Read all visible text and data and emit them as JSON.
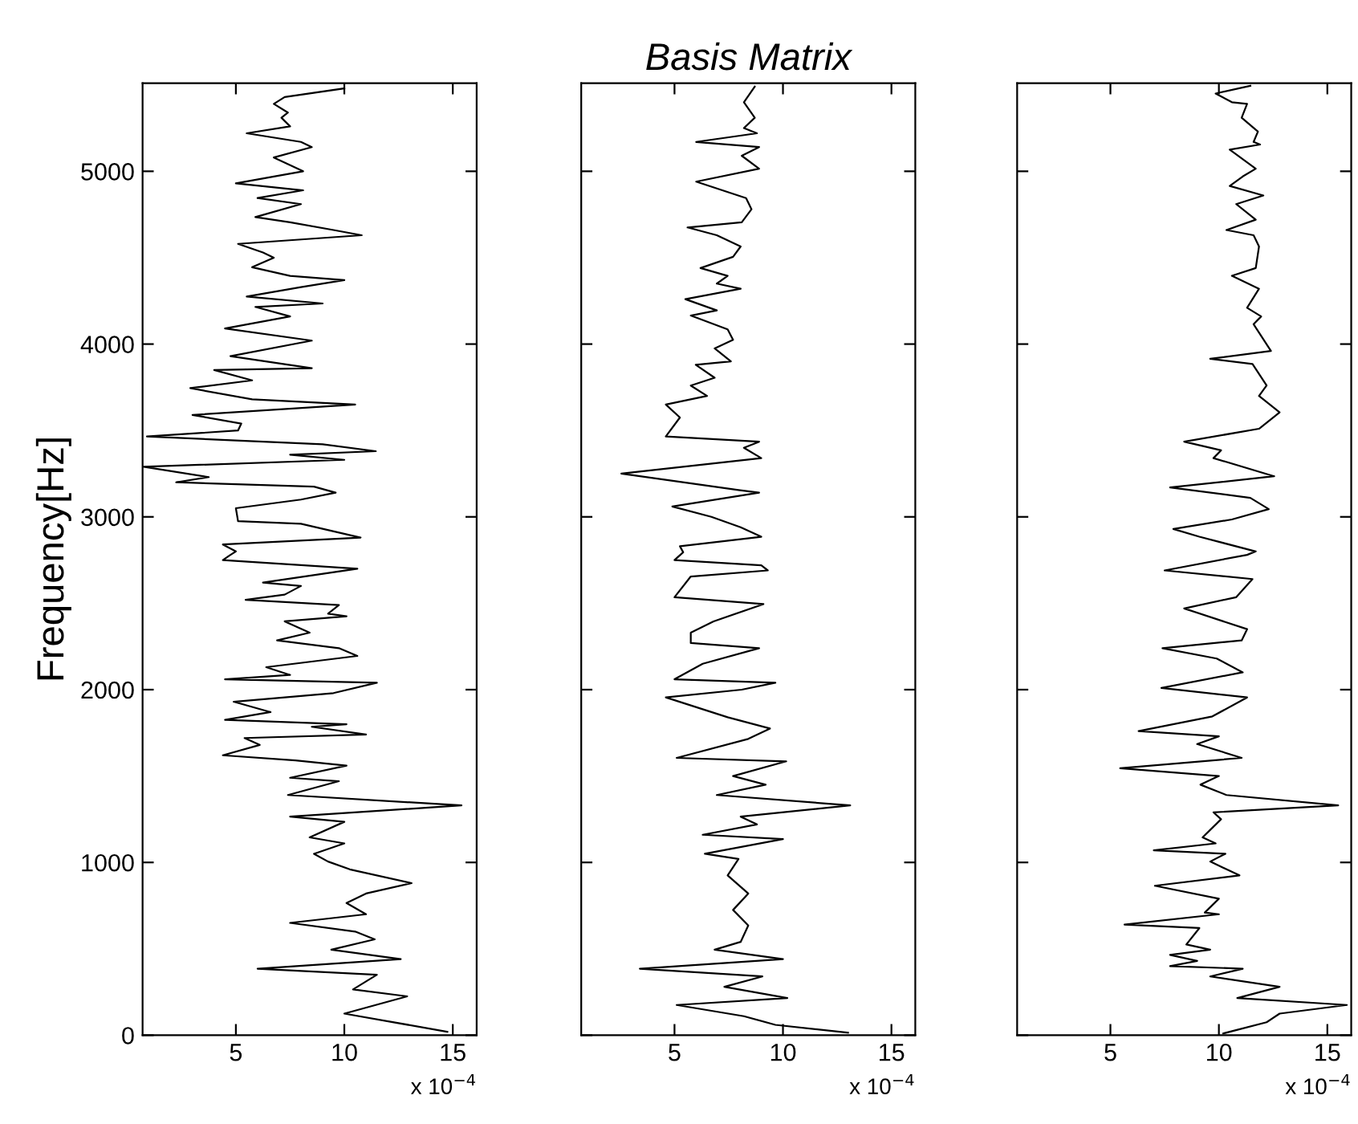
{
  "chart_data": [
    {
      "type": "line",
      "ylabel": "Frequency[Hz]",
      "annotations": [
        "x 10$^{−4}$"
      ],
      "xlim": [
        0.7,
        16.1
      ],
      "xticks": [
        5,
        10,
        15
      ],
      "ylim": [
        0,
        5510
      ],
      "yticks": [
        0,
        1000,
        2000,
        3000,
        4000,
        5000
      ],
      "line_style": "solid",
      "series": [
        {
          "color": "#000000",
          "x": [
            10,
            7.25,
            6.75,
            7.4,
            7.1,
            7.5,
            5.5,
            8,
            8.5,
            6.75,
            8.1,
            6.75,
            5,
            8.1,
            6,
            8,
            5.9,
            7.5,
            9.5,
            10.8,
            5.1,
            6.25,
            6.75,
            5.75,
            7.5,
            10,
            8,
            5.5,
            9,
            5.9,
            7.5,
            4.5,
            8.5,
            4.75,
            8.5,
            4,
            5.75,
            2.9,
            5.75,
            10.5,
            3,
            5.25,
            5.1,
            0.9,
            9,
            11.45,
            7.5,
            10,
            0.75,
            3.75,
            2.25,
            8.6,
            9.6,
            8,
            5,
            5.1,
            8,
            10.75,
            4.4,
            5,
            4.75,
            4.4,
            10.6,
            6.25,
            8,
            7.25,
            5.45,
            9.75,
            9.25,
            10.1,
            7.25,
            8.4,
            6.9,
            9.75,
            10.6,
            6.4,
            7.5,
            4.5,
            11.5,
            9.5,
            4.9,
            6.6,
            4.5,
            10.1,
            8.5,
            11,
            5.4,
            6.1,
            4.4,
            7.75,
            10.1,
            7.5,
            9.75,
            7.4,
            15.4,
            7.5,
            10,
            8.4,
            10,
            8.6,
            9.25,
            10.25,
            13.1,
            11,
            10.1,
            11,
            7.5,
            10.5,
            11.4,
            9.4,
            12.6,
            6,
            11.5,
            10.4,
            12.9,
            10,
            14.75
          ],
          "values": [
            5480,
            5430,
            5390,
            5340,
            5310,
            5260,
            5220,
            5170,
            5140,
            5080,
            5000,
            4970,
            4930,
            4890,
            4845,
            4810,
            4735,
            4705,
            4660,
            4630,
            4580,
            4530,
            4500,
            4445,
            4395,
            4370,
            4330,
            4275,
            4235,
            4215,
            4160,
            4090,
            4020,
            3930,
            3860,
            3850,
            3790,
            3745,
            3680,
            3650,
            3590,
            3540,
            3500,
            3465,
            3420,
            3380,
            3360,
            3330,
            3290,
            3230,
            3200,
            3175,
            3140,
            3100,
            3050,
            2975,
            2960,
            2880,
            2840,
            2800,
            2780,
            2750,
            2700,
            2620,
            2600,
            2550,
            2520,
            2490,
            2440,
            2425,
            2395,
            2330,
            2285,
            2240,
            2195,
            2130,
            2085,
            2060,
            2040,
            1980,
            1930,
            1870,
            1825,
            1800,
            1785,
            1740,
            1720,
            1680,
            1620,
            1590,
            1560,
            1490,
            1470,
            1390,
            1330,
            1265,
            1235,
            1145,
            1110,
            1050,
            1005,
            960,
            880,
            820,
            765,
            700,
            650,
            600,
            555,
            495,
            440,
            385,
            350,
            265,
            225,
            125,
            20
          ]
        }
      ]
    },
    {
      "type": "line",
      "title": "Basis Matrix",
      "annotations": [
        "x 10$^{−4}$"
      ],
      "xlim": [
        0.7,
        16.1
      ],
      "xticks": [
        5,
        10,
        15
      ],
      "ylim": [
        0,
        5510
      ],
      "yticks": [
        {
          "value": 0,
          "label": null
        },
        {
          "value": 1000,
          "label": null
        },
        {
          "value": 2000,
          "label": null
        },
        {
          "value": 3000,
          "label": null
        },
        {
          "value": 4000,
          "label": null
        },
        {
          "value": 5000,
          "label": null
        }
      ],
      "tick_labels": "x",
      "line_style": "solid",
      "series": [
        {
          "color": "#000000",
          "x": [
            8.7,
            8.2,
            8.7,
            8.2,
            8.8,
            6,
            8.9,
            8.1,
            8.9,
            6,
            8.3,
            8.55,
            8.1,
            5.6,
            6.95,
            8.05,
            7.7,
            6.2,
            7.45,
            6.95,
            8.05,
            5.5,
            6.95,
            5.75,
            7.45,
            7.7,
            6.85,
            7.6,
            5.98,
            6.85,
            5.75,
            6.5,
            4.6,
            5.25,
            4.6,
            8.9,
            8.2,
            9,
            2.55,
            7.95,
            8.9,
            4.9,
            6.7,
            8.05,
            9,
            5.25,
            5.4,
            5,
            9,
            9.3,
            5.75,
            5,
            9.1,
            6.8,
            5.75,
            5.75,
            8.9,
            6.3,
            5,
            9.65,
            8.1,
            4.6,
            7.45,
            9.4,
            8.4,
            5.1,
            10.15,
            7.7,
            9.2,
            6.95,
            13.1,
            8.05,
            8.8,
            6.3,
            10,
            6.4,
            7.95,
            7.45,
            8.4,
            7.7,
            8.4,
            8.05,
            6.85,
            10,
            3.4,
            9.05,
            7.3,
            10.2,
            5.1,
            8.2,
            9.65,
            13
          ],
          "values": [
            5490,
            5400,
            5310,
            5250,
            5220,
            5170,
            5140,
            5090,
            5015,
            4940,
            4845,
            4780,
            4705,
            4675,
            4630,
            4565,
            4505,
            4440,
            4395,
            4350,
            4320,
            4260,
            4195,
            4165,
            4085,
            4025,
            3975,
            3900,
            3880,
            3805,
            3760,
            3700,
            3650,
            3575,
            3465,
            3435,
            3400,
            3340,
            3250,
            3155,
            3140,
            3060,
            3000,
            2940,
            2885,
            2830,
            2795,
            2750,
            2720,
            2690,
            2655,
            2535,
            2495,
            2395,
            2330,
            2270,
            2240,
            2150,
            2060,
            2040,
            2000,
            1955,
            1840,
            1775,
            1715,
            1605,
            1585,
            1500,
            1450,
            1390,
            1330,
            1265,
            1220,
            1160,
            1135,
            1050,
            1020,
            925,
            820,
            725,
            635,
            540,
            495,
            440,
            385,
            340,
            280,
            215,
            175,
            110,
            60,
            15
          ]
        }
      ]
    },
    {
      "type": "line",
      "annotations": [
        "x 10$^{−4}$"
      ],
      "xlim": [
        0.7,
        16.1
      ],
      "xticks": [
        5,
        10,
        15
      ],
      "ylim": [
        0,
        5510
      ],
      "yticks": [
        {
          "value": 0,
          "label": null
        },
        {
          "value": 1000,
          "label": null
        },
        {
          "value": 2000,
          "label": null
        },
        {
          "value": 3000,
          "label": null
        },
        {
          "value": 4000,
          "label": null
        },
        {
          "value": 5000,
          "label": null
        }
      ],
      "tick_labels": "x",
      "line_style": "solid",
      "series": [
        {
          "color": "#000000",
          "x": [
            11.45,
            9.85,
            10.6,
            11.3,
            11.05,
            11.8,
            11.6,
            11.9,
            10.5,
            11.7,
            11.1,
            10.5,
            12.05,
            10.8,
            11.7,
            10.35,
            11.6,
            11.85,
            11.7,
            10.6,
            11.85,
            11.3,
            11.95,
            11.6,
            12.4,
            9.6,
            11.55,
            12.2,
            11.85,
            12.8,
            11.85,
            8.4,
            10.1,
            9.75,
            12.55,
            7.75,
            11.45,
            12.3,
            10.6,
            7.9,
            9.1,
            11.7,
            11.3,
            7.5,
            11.55,
            10.8,
            8.4,
            11.3,
            11.05,
            7.4,
            9.9,
            11.1,
            7.35,
            11.3,
            9.7,
            6.3,
            10,
            9,
            11.05,
            5.45,
            10,
            9.15,
            10.35,
            15.5,
            9.75,
            10.1,
            9.25,
            9.85,
            7,
            10.3,
            9.6,
            10.95,
            7.05,
            10,
            9.35,
            10,
            5.65,
            9.1,
            8.5,
            9.6,
            7.75,
            9,
            7.75,
            11.1,
            9.6,
            12.8,
            10.85,
            15.9,
            12.8,
            12.2,
            10.2
          ],
          "values": [
            5495,
            5450,
            5400,
            5390,
            5310,
            5230,
            5170,
            5155,
            5125,
            5015,
            4970,
            4915,
            4860,
            4810,
            4720,
            4660,
            4630,
            4565,
            4440,
            4395,
            4320,
            4210,
            4160,
            4115,
            3960,
            3915,
            3885,
            3760,
            3700,
            3605,
            3510,
            3435,
            3385,
            3340,
            3235,
            3170,
            3110,
            3045,
            2985,
            2930,
            2885,
            2800,
            2780,
            2690,
            2640,
            2535,
            2470,
            2350,
            2285,
            2240,
            2180,
            2100,
            2010,
            1955,
            1845,
            1760,
            1730,
            1685,
            1605,
            1545,
            1500,
            1450,
            1390,
            1330,
            1290,
            1250,
            1145,
            1110,
            1070,
            1050,
            1005,
            925,
            865,
            790,
            710,
            700,
            640,
            620,
            525,
            495,
            465,
            430,
            400,
            385,
            340,
            280,
            215,
            175,
            125,
            75,
            10
          ]
        }
      ]
    }
  ]
}
